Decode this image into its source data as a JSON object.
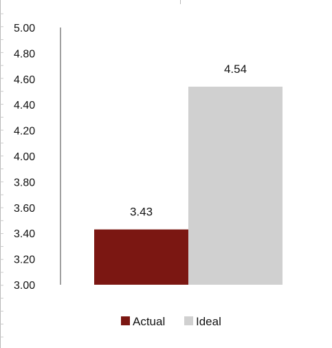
{
  "chart_data": {
    "type": "bar",
    "categories": [
      "Actual",
      "Ideal"
    ],
    "series": [
      {
        "name": "Actual",
        "values": [
          3.43,
          null
        ],
        "color": "#7b1712"
      },
      {
        "name": "Ideal",
        "values": [
          null,
          4.54
        ],
        "color": "#d0d0d0"
      }
    ],
    "data_labels": [
      "3.43",
      "4.54"
    ],
    "title": "",
    "xlabel": "",
    "ylabel": "",
    "ylim": [
      3.0,
      5.0
    ],
    "yticks": [
      "5.00",
      "4.80",
      "4.60",
      "4.40",
      "4.20",
      "4.00",
      "3.80",
      "3.60",
      "3.40",
      "3.20",
      "3.00"
    ],
    "grid": false,
    "legend": {
      "position": "bottom",
      "entries": [
        "Actual",
        "Ideal"
      ]
    }
  }
}
